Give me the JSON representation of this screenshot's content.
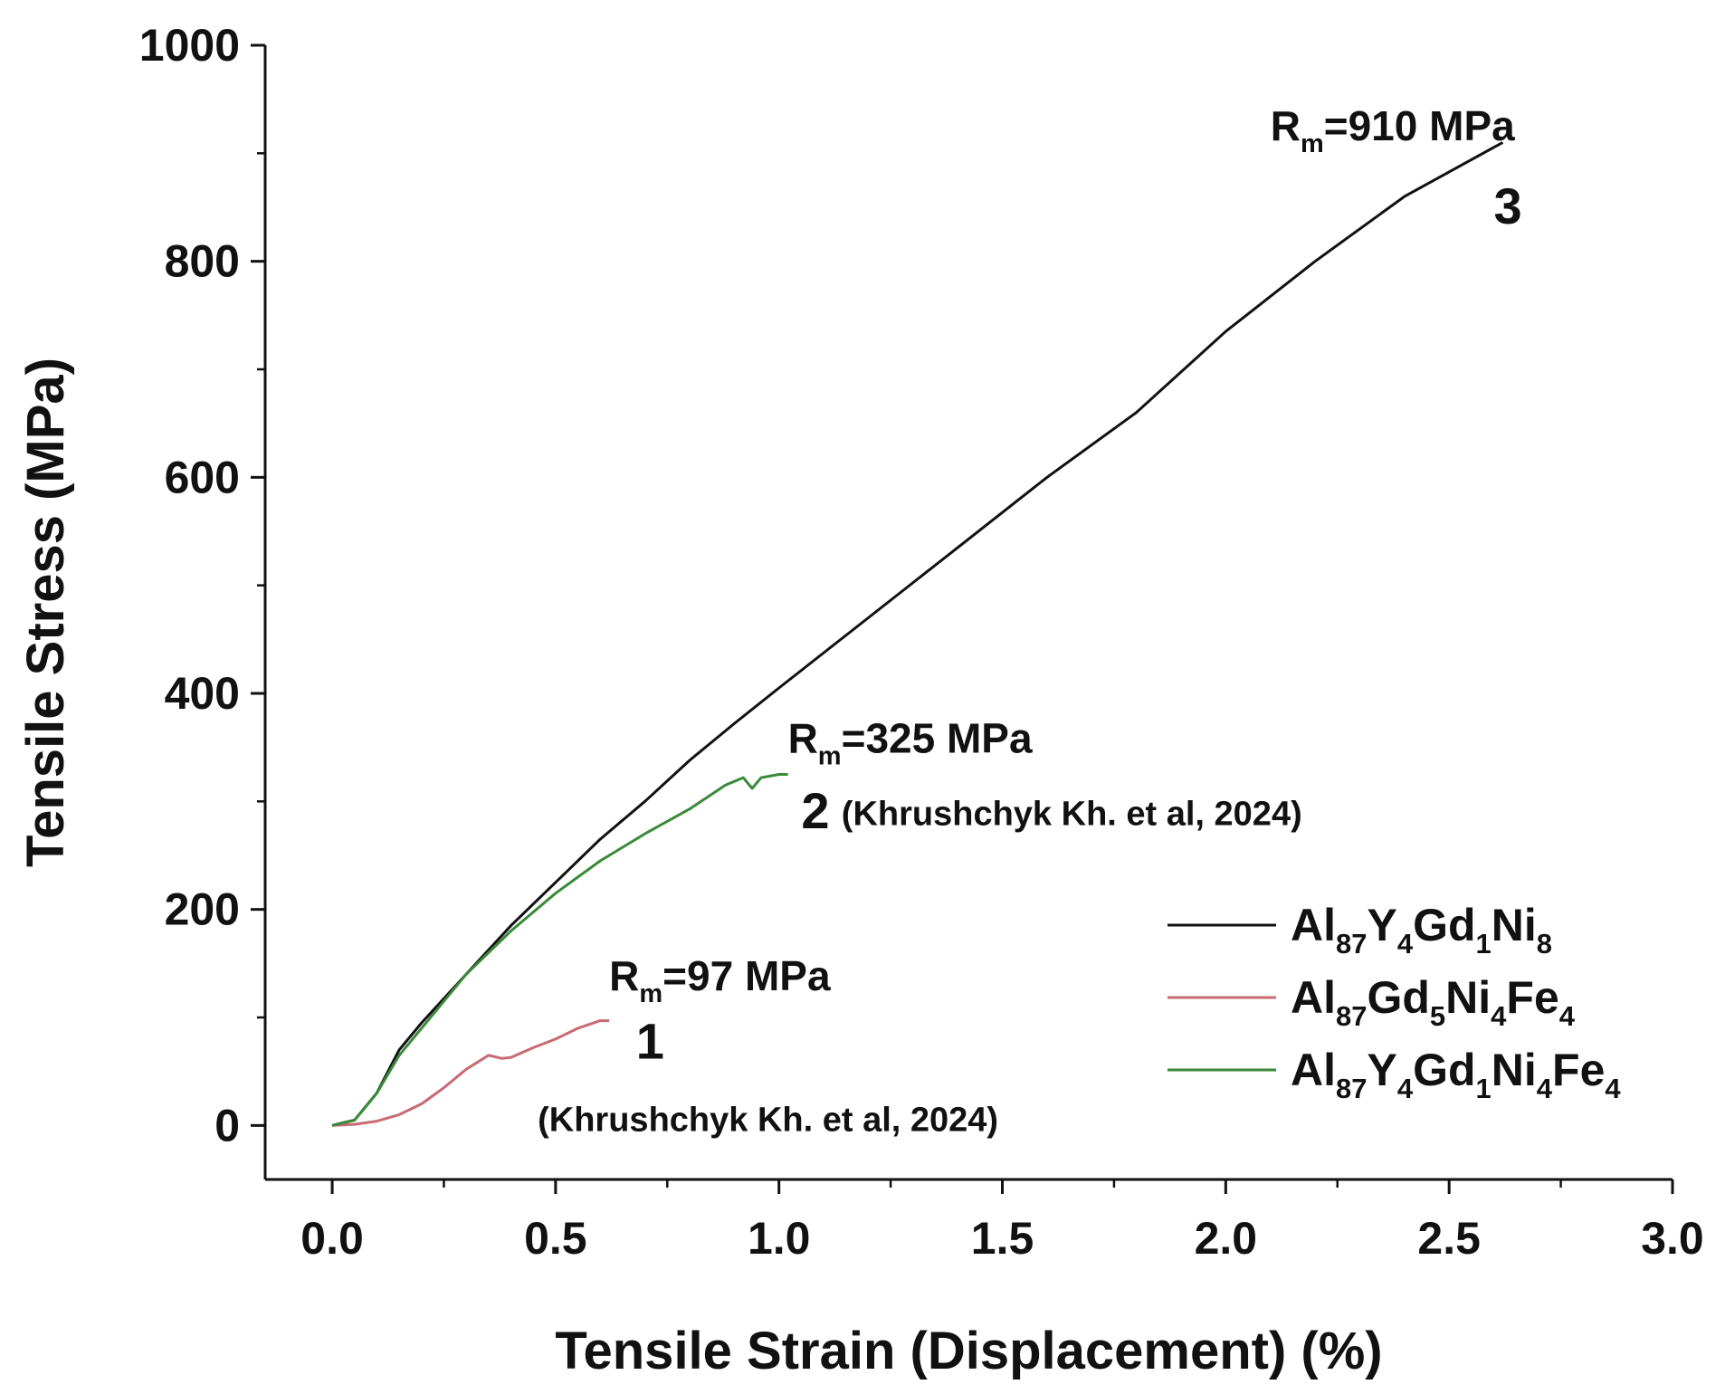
{
  "chart_data": {
    "type": "line",
    "xlabel": "Tensile Strain (Displacement) (%)",
    "ylabel": "Tensile Stress (MPa)",
    "xlim": [
      -0.15,
      3.0
    ],
    "ylim": [
      -50,
      1000
    ],
    "x_ticks": [
      0.0,
      0.5,
      1.0,
      1.5,
      2.0,
      2.5,
      3.0
    ],
    "x_tick_labels": [
      "0.0",
      "0.5",
      "1.0",
      "1.5",
      "2.0",
      "2.5",
      "3.0"
    ],
    "y_ticks": [
      0,
      200,
      400,
      600,
      800,
      1000
    ],
    "y_tick_labels": [
      "0",
      "200",
      "400",
      "600",
      "800",
      "1000"
    ],
    "grid": false,
    "legend_position": "right",
    "series": [
      {
        "name": "Al87Y4Gd1Ni8",
        "legend": {
          "parts": [
            [
              "Al",
              ""
            ],
            [
              "87",
              "sub"
            ],
            [
              "Y",
              ""
            ],
            [
              "4",
              "sub"
            ],
            [
              "Gd",
              ""
            ],
            [
              "1",
              "sub"
            ],
            [
              "Ni",
              ""
            ],
            [
              "8",
              "sub"
            ]
          ]
        },
        "color": "#111111",
        "points": [
          [
            0,
            0
          ],
          [
            0.05,
            5
          ],
          [
            0.1,
            30
          ],
          [
            0.15,
            70
          ],
          [
            0.2,
            95
          ],
          [
            0.3,
            140
          ],
          [
            0.4,
            185
          ],
          [
            0.5,
            225
          ],
          [
            0.6,
            265
          ],
          [
            0.7,
            300
          ],
          [
            0.8,
            338
          ],
          [
            0.9,
            372
          ],
          [
            1.0,
            405
          ],
          [
            1.2,
            470
          ],
          [
            1.4,
            535
          ],
          [
            1.6,
            600
          ],
          [
            1.8,
            660
          ],
          [
            2.0,
            735
          ],
          [
            2.2,
            800
          ],
          [
            2.4,
            860
          ],
          [
            2.62,
            910
          ]
        ]
      },
      {
        "name": "Al87Gd5Ni4Fe4",
        "legend": {
          "parts": [
            [
              "Al",
              ""
            ],
            [
              "87",
              "sub"
            ],
            [
              "Gd",
              ""
            ],
            [
              "5",
              "sub"
            ],
            [
              "Ni",
              ""
            ],
            [
              "4",
              "sub"
            ],
            [
              "Fe",
              ""
            ],
            [
              "4",
              "sub"
            ]
          ]
        },
        "color": "#c96a72",
        "points": [
          [
            0,
            0
          ],
          [
            0.05,
            1
          ],
          [
            0.1,
            4
          ],
          [
            0.15,
            10
          ],
          [
            0.2,
            20
          ],
          [
            0.25,
            35
          ],
          [
            0.3,
            52
          ],
          [
            0.35,
            65
          ],
          [
            0.38,
            62
          ],
          [
            0.4,
            63
          ],
          [
            0.45,
            72
          ],
          [
            0.5,
            80
          ],
          [
            0.55,
            90
          ],
          [
            0.6,
            97
          ],
          [
            0.62,
            97
          ]
        ]
      },
      {
        "name": "Al87Y4Gd1Ni4Fe4",
        "legend": {
          "parts": [
            [
              "Al",
              ""
            ],
            [
              "87",
              "sub"
            ],
            [
              "Y",
              ""
            ],
            [
              "4",
              "sub"
            ],
            [
              "Gd",
              ""
            ],
            [
              "1",
              "sub"
            ],
            [
              "Ni",
              ""
            ],
            [
              "4",
              "sub"
            ],
            [
              "Fe",
              ""
            ],
            [
              "4",
              "sub"
            ]
          ]
        },
        "color": "#3a8a3a",
        "points": [
          [
            0,
            0
          ],
          [
            0.05,
            5
          ],
          [
            0.1,
            30
          ],
          [
            0.15,
            65
          ],
          [
            0.2,
            90
          ],
          [
            0.3,
            140
          ],
          [
            0.4,
            180
          ],
          [
            0.5,
            215
          ],
          [
            0.6,
            245
          ],
          [
            0.7,
            270
          ],
          [
            0.8,
            293
          ],
          [
            0.88,
            315
          ],
          [
            0.92,
            322
          ],
          [
            0.94,
            312
          ],
          [
            0.96,
            322
          ],
          [
            1.0,
            325
          ],
          [
            1.02,
            325
          ]
        ]
      }
    ],
    "annotations": [
      {
        "id": "rm-910",
        "parts": [
          [
            "R",
            ""
          ],
          [
            "m",
            "sub"
          ],
          [
            "=910 MPa",
            ""
          ]
        ],
        "x": 2.1,
        "y": 912,
        "size": 46
      },
      {
        "id": "curve-3",
        "parts": [
          [
            "3",
            ""
          ]
        ],
        "x": 2.6,
        "y": 835,
        "size": 56
      },
      {
        "id": "rm-325",
        "parts": [
          [
            "R",
            ""
          ],
          [
            "m",
            "sub"
          ],
          [
            "=325 MPa",
            ""
          ]
        ],
        "x": 1.02,
        "y": 345,
        "size": 46
      },
      {
        "id": "curve-2",
        "parts": [
          [
            "2",
            ""
          ]
        ],
        "x": 1.05,
        "y": 275,
        "size": 56
      },
      {
        "id": "ref-2",
        "parts": [
          [
            "(Khrushchyk Kh. et al, 2024)",
            ""
          ]
        ],
        "x": 1.14,
        "y": 278,
        "size": 38
      },
      {
        "id": "rm-97",
        "parts": [
          [
            "R",
            ""
          ],
          [
            "m",
            "sub"
          ],
          [
            "=97 MPa",
            ""
          ]
        ],
        "x": 0.62,
        "y": 125,
        "size": 46
      },
      {
        "id": "curve-1",
        "parts": [
          [
            "1",
            ""
          ]
        ],
        "x": 0.68,
        "y": 62,
        "size": 56
      },
      {
        "id": "ref-1",
        "parts": [
          [
            "(Khrushchyk Kh. et al, 2024)",
            ""
          ]
        ],
        "x": 0.46,
        "y": -5,
        "size": 38
      }
    ]
  }
}
